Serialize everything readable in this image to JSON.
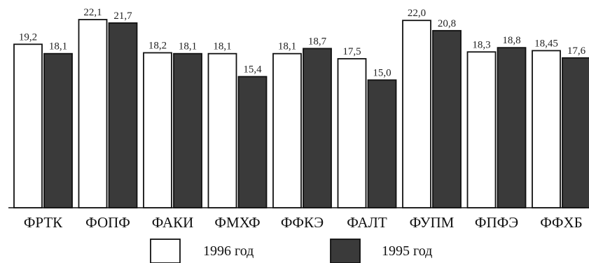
{
  "chart_data": {
    "type": "bar",
    "categories": [
      "ФРТК",
      "ФОПФ",
      "ФАКИ",
      "ФМХФ",
      "ФФКЭ",
      "ФАЛТ",
      "ФУПМ",
      "ФПФЭ",
      "ФФХБ"
    ],
    "series": [
      {
        "name": "1996 год",
        "values": [
          19.2,
          22.1,
          18.2,
          18.1,
          18.1,
          17.5,
          22.0,
          18.3,
          18.45
        ],
        "labels": [
          "19,2",
          "22,1",
          "18,2",
          "18,1",
          "18,1",
          "17,5",
          "22,0",
          "18,3",
          "18,45"
        ],
        "fill": "#ffffff"
      },
      {
        "name": "1995 год",
        "values": [
          18.1,
          21.7,
          18.1,
          15.4,
          18.7,
          15.0,
          20.8,
          18.8,
          17.6
        ],
        "labels": [
          "18,1",
          "21,7",
          "18,1",
          "15,4",
          "18,7",
          "15,0",
          "20,8",
          "18,8",
          "17,6"
        ],
        "fill": "#3a3a3a"
      }
    ],
    "ylim": [
      0,
      22.1
    ],
    "grid": false,
    "legend_position": "bottom"
  }
}
